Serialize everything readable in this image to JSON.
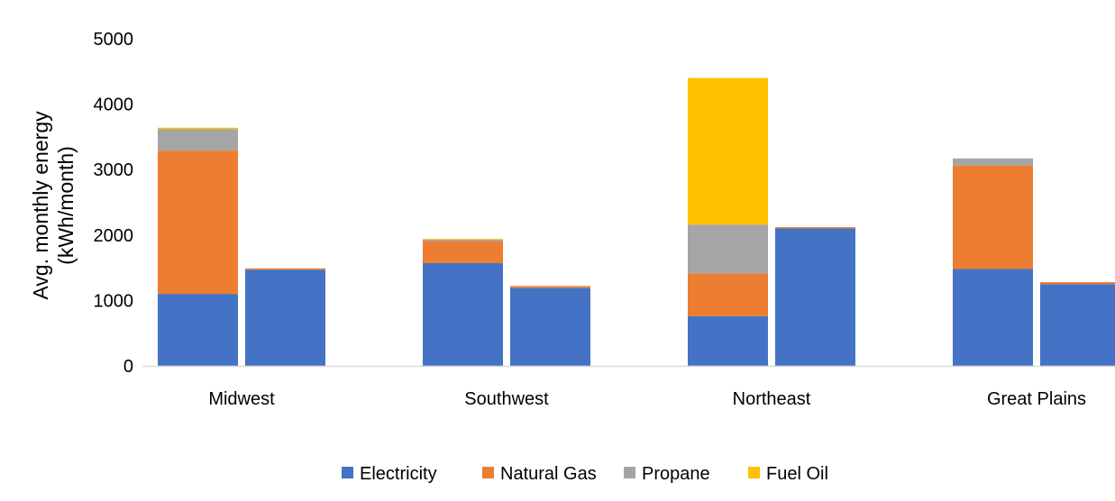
{
  "chart_data": {
    "type": "bar",
    "stacked": true,
    "categories": [
      "Midwest",
      "Southwest",
      "Northeast",
      "Great Plains"
    ],
    "bars_per_category": 2,
    "series": [
      {
        "name": "Electricity",
        "color": "#4472C4",
        "values": [
          [
            1100,
            1470
          ],
          [
            1570,
            1190
          ],
          [
            760,
            2100
          ],
          [
            1480,
            1250
          ]
        ]
      },
      {
        "name": "Natural Gas",
        "color": "#ED7D31",
        "values": [
          [
            2190,
            20
          ],
          [
            340,
            30
          ],
          [
            650,
            20
          ],
          [
            1580,
            30
          ]
        ]
      },
      {
        "name": "Propane",
        "color": "#A5A5A5",
        "values": [
          [
            330,
            0
          ],
          [
            20,
            0
          ],
          [
            750,
            0
          ],
          [
            110,
            0
          ]
        ]
      },
      {
        "name": "Fuel Oil",
        "color": "#FFC000",
        "values": [
          [
            20,
            0
          ],
          [
            10,
            0
          ],
          [
            2240,
            0
          ],
          [
            0,
            0
          ]
        ]
      }
    ],
    "ylabel_lines": [
      "Avg. monthly energy",
      "(kWh/month)"
    ],
    "ylim": [
      0,
      5000
    ],
    "yticks": [
      "0",
      "1000",
      "2000",
      "3000",
      "4000",
      "5000"
    ],
    "ytick_values": [
      0,
      1000,
      2000,
      3000,
      4000,
      5000
    ],
    "grid": false,
    "legend_position": "bottom"
  }
}
